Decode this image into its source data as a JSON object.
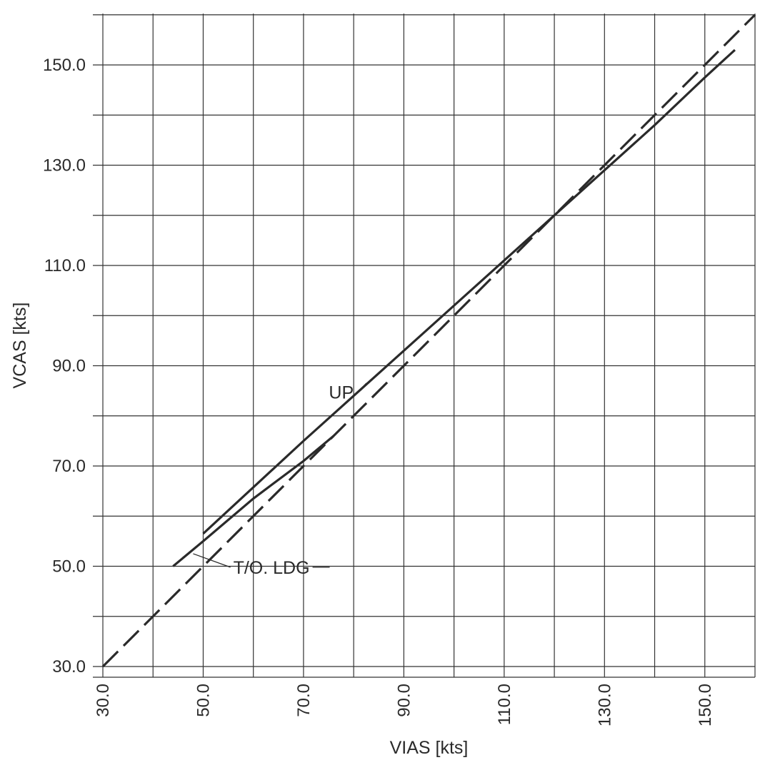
{
  "chart_data": {
    "type": "line",
    "title": "",
    "xlabel": "VIAS [kts]",
    "ylabel": "VCAS [kts]",
    "xlim": [
      30,
      160
    ],
    "ylim": [
      25,
      155
    ],
    "grid": true,
    "x_ticks": [
      30,
      40,
      50,
      60,
      70,
      80,
      90,
      100,
      110,
      120,
      130,
      140,
      150,
      160
    ],
    "y_ticks": [
      25,
      30,
      40,
      50,
      60,
      70,
      80,
      90,
      100,
      110,
      120,
      130,
      140,
      150,
      160
    ],
    "x_tick_labels": [
      {
        "value": 30,
        "label": "30.0"
      },
      {
        "value": 50,
        "label": "50.0"
      },
      {
        "value": 70,
        "label": "70.0"
      },
      {
        "value": 90,
        "label": "90.0"
      },
      {
        "value": 110,
        "label": "110.0"
      },
      {
        "value": 130,
        "label": "130.0"
      },
      {
        "value": 150,
        "label": "150.0"
      }
    ],
    "y_tick_labels": [
      {
        "value": 30,
        "label": "30.0"
      },
      {
        "value": 50,
        "label": "50.0"
      },
      {
        "value": 70,
        "label": "70.0"
      },
      {
        "value": 90,
        "label": "90.0"
      },
      {
        "value": 110,
        "label": "110.0"
      },
      {
        "value": 130,
        "label": "130.0"
      },
      {
        "value": 150,
        "label": "150.0"
      }
    ],
    "series": [
      {
        "style": "dashed",
        "x": [
          30,
          160
        ],
        "y": [
          30,
          160
        ]
      },
      {
        "style": "solid",
        "x": [
          50,
          70,
          90,
          110,
          120,
          130,
          140,
          150,
          156
        ],
        "y": [
          56.5,
          75,
          93,
          111,
          120,
          129,
          138,
          147.5,
          153
        ]
      },
      {
        "style": "solid",
        "x": [
          44,
          50,
          60,
          70,
          76
        ],
        "y": [
          50,
          55,
          63.5,
          71,
          76
        ]
      }
    ],
    "annotations": [
      {
        "text": "UP",
        "text_x": 80,
        "text_y": 84.7,
        "target_x": 82.5,
        "target_y": 86.5
      },
      {
        "text": "T/O. LDG",
        "text_x": 56,
        "text_y": 49.8,
        "target_x": 48,
        "target_y": 52.5
      }
    ]
  }
}
